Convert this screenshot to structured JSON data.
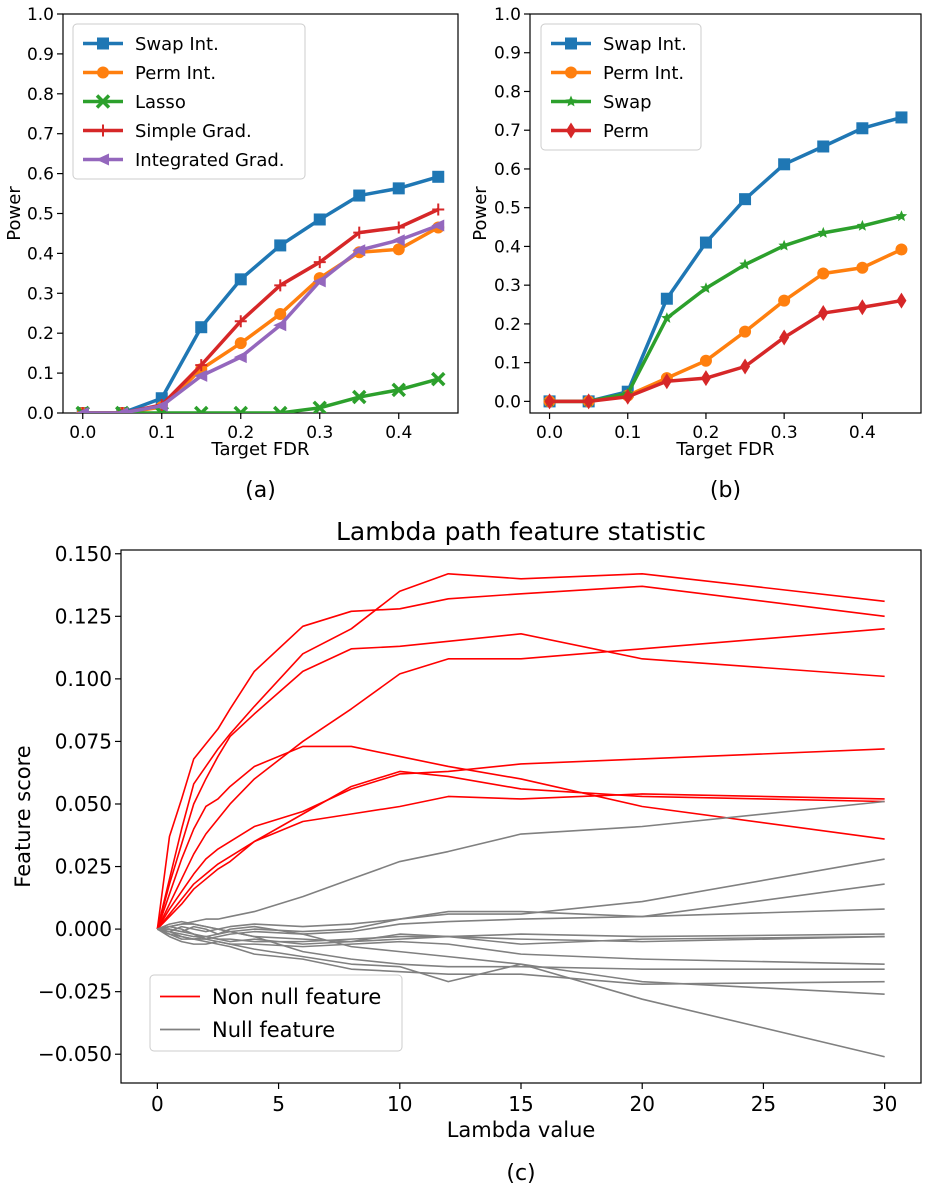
{
  "chart_data": [
    {
      "type": "line",
      "caption": "(a)",
      "xlabel": "Target FDR",
      "ylabel": "Power",
      "xlim": [
        -0.025,
        0.475
      ],
      "ylim": [
        0,
        1.0
      ],
      "xticks": [
        "0.0",
        "0.1",
        "0.2",
        "0.3",
        "0.4"
      ],
      "yticks": [
        "0.0",
        "0.1",
        "0.2",
        "0.3",
        "0.4",
        "0.5",
        "0.6",
        "0.7",
        "0.8",
        "0.9",
        "1.0"
      ],
      "legend_position": "top-left",
      "x": [
        0,
        0.05,
        0.1,
        0.15,
        0.2,
        0.25,
        0.3,
        0.35,
        0.4,
        0.45
      ],
      "series": [
        {
          "name": "Swap Int.",
          "color": "#1f77b4",
          "marker": "square",
          "values": [
            0,
            0,
            0.037,
            0.215,
            0.335,
            0.42,
            0.485,
            0.545,
            0.563,
            0.592
          ]
        },
        {
          "name": "Perm Int.",
          "color": "#ff7f0e",
          "marker": "circle",
          "values": [
            0,
            0,
            0.015,
            0.11,
            0.175,
            0.248,
            0.338,
            0.403,
            0.41,
            0.465
          ]
        },
        {
          "name": "Lasso",
          "color": "#2ca02c",
          "marker": "x",
          "values": [
            0,
            0,
            0,
            0,
            0,
            0,
            0.013,
            0.04,
            0.058,
            0.085
          ]
        },
        {
          "name": "Simple Grad.",
          "color": "#d62728",
          "marker": "plus",
          "values": [
            0,
            0,
            0.02,
            0.12,
            0.23,
            0.32,
            0.378,
            0.452,
            0.465,
            0.51
          ]
        },
        {
          "name": "Integrated Grad.",
          "color": "#9467bd",
          "marker": "triangle-left",
          "values": [
            0,
            0,
            0.018,
            0.093,
            0.14,
            0.22,
            0.33,
            0.408,
            0.433,
            0.47
          ]
        }
      ]
    },
    {
      "type": "line",
      "caption": "(b)",
      "xlabel": "Target FDR",
      "ylabel": "Power",
      "xlim": [
        -0.025,
        0.475
      ],
      "ylim": [
        -0.03,
        1.0
      ],
      "xticks": [
        "0.0",
        "0.1",
        "0.2",
        "0.3",
        "0.4"
      ],
      "yticks": [
        "0.0",
        "0.1",
        "0.2",
        "0.3",
        "0.4",
        "0.5",
        "0.6",
        "0.7",
        "0.8",
        "0.9",
        "1.0"
      ],
      "legend_position": "top-left",
      "x": [
        0,
        0.05,
        0.1,
        0.15,
        0.2,
        0.25,
        0.3,
        0.35,
        0.4,
        0.45
      ],
      "series": [
        {
          "name": "Swap Int.",
          "color": "#1f77b4",
          "marker": "square",
          "values": [
            0,
            0,
            0.025,
            0.265,
            0.41,
            0.522,
            0.612,
            0.658,
            0.705,
            0.733
          ]
        },
        {
          "name": "Perm Int.",
          "color": "#ff7f0e",
          "marker": "circle",
          "values": [
            0,
            0,
            0.015,
            0.06,
            0.105,
            0.18,
            0.26,
            0.33,
            0.345,
            0.392
          ]
        },
        {
          "name": "Swap",
          "color": "#2ca02c",
          "marker": "star",
          "values": [
            0,
            0,
            0.02,
            0.215,
            0.292,
            0.353,
            0.402,
            0.435,
            0.453,
            0.478
          ]
        },
        {
          "name": "Perm",
          "color": "#d62728",
          "marker": "diamond",
          "values": [
            0,
            0,
            0.012,
            0.052,
            0.06,
            0.09,
            0.165,
            0.228,
            0.243,
            0.26
          ]
        }
      ]
    },
    {
      "type": "line",
      "caption": "(c)",
      "title": "Lambda path feature statistic",
      "xlabel": "Lambda value",
      "ylabel": "Feature score",
      "xlim": [
        -1.5,
        31.5
      ],
      "ylim": [
        -0.0615,
        0.1515
      ],
      "xticks": [
        "0",
        "5",
        "10",
        "15",
        "20",
        "25",
        "30"
      ],
      "yticks": [
        "−0.050",
        "−0.025",
        "0.000",
        "0.025",
        "0.050",
        "0.075",
        "0.100",
        "0.125",
        "0.150"
      ],
      "legend_position": "bottom-left",
      "x": [
        0,
        0.5,
        1,
        1.5,
        2,
        2.5,
        3,
        4,
        6,
        8,
        10,
        12,
        15,
        20,
        30
      ],
      "legend": [
        {
          "name": "Non null feature",
          "color": "#ff0000"
        },
        {
          "name": "Null feature",
          "color": "#808080"
        }
      ],
      "series": [
        {
          "group": "non_null",
          "values": [
            0,
            0.037,
            0.052,
            0.068,
            0.074,
            0.08,
            0.088,
            0.103,
            0.121,
            0.127,
            0.128,
            0.132,
            0.134,
            0.137,
            0.125
          ]
        },
        {
          "group": "non_null",
          "values": [
            0,
            0.02,
            0.04,
            0.058,
            0.065,
            0.072,
            0.078,
            0.089,
            0.11,
            0.12,
            0.135,
            0.142,
            0.14,
            0.142,
            0.131
          ]
        },
        {
          "group": "non_null",
          "values": [
            0,
            0.018,
            0.034,
            0.05,
            0.06,
            0.069,
            0.077,
            0.086,
            0.103,
            0.112,
            0.113,
            0.115,
            0.118,
            0.108,
            0.101
          ]
        },
        {
          "group": "non_null",
          "values": [
            0,
            0.01,
            0.02,
            0.03,
            0.038,
            0.044,
            0.05,
            0.06,
            0.075,
            0.088,
            0.102,
            0.108,
            0.108,
            0.112,
            0.12
          ]
        },
        {
          "group": "non_null",
          "values": [
            0,
            0.014,
            0.028,
            0.04,
            0.049,
            0.052,
            0.057,
            0.065,
            0.073,
            0.073,
            0.069,
            0.065,
            0.06,
            0.049,
            0.036
          ]
        },
        {
          "group": "non_null",
          "values": [
            0,
            0.008,
            0.015,
            0.022,
            0.028,
            0.032,
            0.035,
            0.041,
            0.047,
            0.056,
            0.062,
            0.063,
            0.066,
            0.068,
            0.072
          ]
        },
        {
          "group": "non_null",
          "values": [
            0,
            0.006,
            0.012,
            0.018,
            0.022,
            0.026,
            0.029,
            0.035,
            0.046,
            0.057,
            0.063,
            0.061,
            0.056,
            0.053,
            0.051
          ]
        },
        {
          "group": "non_null",
          "values": [
            0,
            0.005,
            0.01,
            0.016,
            0.02,
            0.024,
            0.027,
            0.035,
            0.043,
            0.046,
            0.049,
            0.053,
            0.052,
            0.054,
            0.052
          ]
        },
        {
          "group": "null",
          "values": [
            0,
            0.001,
            0.002,
            0.003,
            0.004,
            0.004,
            0.005,
            0.007,
            0.013,
            0.02,
            0.027,
            0.031,
            0.038,
            0.041,
            0.051
          ]
        },
        {
          "group": "null",
          "values": [
            0,
            -0.001,
            0.001,
            0.0,
            -0.001,
            0.0,
            0.001,
            0.002,
            0.001,
            0.002,
            0.004,
            0.006,
            0.006,
            0.011,
            0.028
          ]
        },
        {
          "group": "null",
          "values": [
            0,
            0.0,
            -0.001,
            0.001,
            0.0,
            -0.002,
            -0.001,
            0.0,
            -0.001,
            0.0,
            0.004,
            0.007,
            0.007,
            0.005,
            0.018
          ]
        },
        {
          "group": "null",
          "values": [
            0,
            -0.002,
            -0.003,
            -0.004,
            -0.004,
            -0.003,
            -0.002,
            -0.001,
            -0.002,
            -0.001,
            0.002,
            0.003,
            0.004,
            0.005,
            0.008
          ]
        },
        {
          "group": "null",
          "values": [
            0,
            0.002,
            0.003,
            0.002,
            0.001,
            0.0,
            -0.001,
            -0.003,
            -0.004,
            -0.005,
            -0.004,
            -0.003,
            -0.002,
            -0.003,
            -0.002
          ]
        },
        {
          "group": "null",
          "values": [
            0,
            -0.001,
            -0.002,
            -0.003,
            -0.003,
            -0.004,
            -0.004,
            -0.005,
            -0.005,
            -0.004,
            -0.003,
            -0.003,
            -0.004,
            -0.005,
            -0.003
          ]
        },
        {
          "group": "null",
          "values": [
            0,
            0.001,
            0.0,
            -0.002,
            -0.003,
            -0.004,
            -0.005,
            -0.004,
            -0.006,
            -0.005,
            -0.002,
            -0.003,
            -0.006,
            -0.004,
            -0.003
          ]
        },
        {
          "group": "null",
          "values": [
            0,
            -0.003,
            -0.005,
            -0.006,
            -0.006,
            -0.005,
            -0.006,
            -0.006,
            -0.007,
            -0.006,
            -0.005,
            -0.006,
            -0.01,
            -0.012,
            -0.014
          ]
        },
        {
          "group": "null",
          "values": [
            0,
            0.001,
            0.002,
            0.002,
            0.001,
            0.0,
            -0.001,
            -0.003,
            -0.009,
            -0.012,
            -0.014,
            -0.015,
            -0.015,
            -0.016,
            -0.016
          ]
        },
        {
          "group": "null",
          "values": [
            0,
            -0.002,
            -0.004,
            -0.004,
            -0.003,
            -0.002,
            0.0,
            0.001,
            -0.002,
            -0.007,
            -0.009,
            -0.011,
            -0.014,
            -0.021,
            -0.026
          ]
        },
        {
          "group": "null",
          "values": [
            0,
            -0.001,
            -0.003,
            -0.004,
            -0.005,
            -0.006,
            -0.007,
            -0.01,
            -0.012,
            -0.016,
            -0.017,
            -0.018,
            -0.018,
            -0.022,
            -0.021
          ]
        },
        {
          "group": "null",
          "values": [
            0,
            0.0,
            -0.001,
            -0.002,
            -0.004,
            -0.005,
            -0.006,
            -0.008,
            -0.011,
            -0.014,
            -0.015,
            -0.021,
            -0.014,
            -0.028,
            -0.051
          ]
        }
      ]
    }
  ]
}
